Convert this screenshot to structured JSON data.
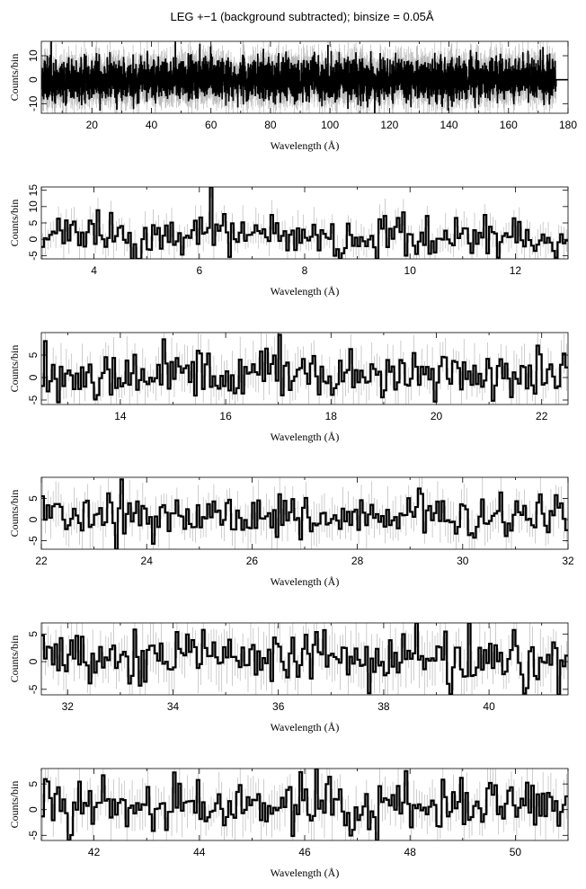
{
  "figure": {
    "title": "LEG +−1 (background subtracted); binsize = 0.05Å"
  },
  "chart_data": [
    {
      "type": "line",
      "xlabel": "Wavelength (Å)",
      "ylabel": "Counts/bin",
      "xlim": [
        3,
        180
      ],
      "ylim": [
        -14,
        16
      ],
      "xticks": [
        20,
        40,
        60,
        80,
        100,
        120,
        140,
        160,
        180
      ],
      "yticks": [
        -10,
        0,
        10
      ],
      "data_end": 176,
      "seed": 11,
      "amplitude": 4.2,
      "error_amplitude": 5.0,
      "peaks": [
        [
          6.3,
          16
        ],
        [
          115,
          -14
        ]
      ]
    },
    {
      "type": "line",
      "xlabel": "Wavelength (Å)",
      "ylabel": "Counts/bin",
      "xlim": [
        3,
        13
      ],
      "ylim": [
        -6,
        16
      ],
      "xticks": [
        4,
        6,
        8,
        10,
        12
      ],
      "yticks": [
        -5,
        0,
        5,
        10,
        15
      ],
      "seed": 23,
      "amplitude": 3.2,
      "error_amplitude": 4.0,
      "peaks": [
        [
          6.2,
          16
        ],
        [
          4.8,
          -6
        ],
        [
          9.9,
          -5
        ]
      ]
    },
    {
      "type": "line",
      "xlabel": "Wavelength (Å)",
      "ylabel": "Counts/bin",
      "xlim": [
        12.5,
        22.5
      ],
      "ylim": [
        -6,
        10
      ],
      "xticks": [
        14,
        16,
        18,
        20,
        22
      ],
      "yticks": [
        -5,
        0,
        5
      ],
      "seed": 37,
      "amplitude": 2.8,
      "error_amplitude": 4.0,
      "peaks": [
        [
          17,
          9.5
        ],
        [
          14.8,
          8.5
        ],
        [
          12.8,
          -5.5
        ]
      ]
    },
    {
      "type": "line",
      "xlabel": "Wavelength (Å)",
      "ylabel": "Counts/bin",
      "xlim": [
        22,
        32
      ],
      "ylim": [
        -7,
        10
      ],
      "xticks": [
        22,
        24,
        26,
        28,
        30,
        32
      ],
      "yticks": [
        -5,
        0,
        5
      ],
      "seed": 41,
      "amplitude": 2.6,
      "error_amplitude": 4.0,
      "peaks": [
        [
          23.5,
          9.5
        ],
        [
          23.4,
          -7
        ],
        [
          26.5,
          6
        ]
      ]
    },
    {
      "type": "line",
      "xlabel": "Wavelength (Å)",
      "ylabel": "Counts/bin",
      "xlim": [
        31.5,
        41.5
      ],
      "ylim": [
        -6,
        7
      ],
      "xticks": [
        32,
        34,
        36,
        38,
        40
      ],
      "yticks": [
        -5,
        0,
        5
      ],
      "seed": 53,
      "amplitude": 2.5,
      "error_amplitude": 3.8,
      "peaks": [
        [
          39.6,
          7
        ],
        [
          38.6,
          7
        ],
        [
          41.3,
          -6
        ]
      ]
    },
    {
      "type": "line",
      "xlabel": "Wavelength (Å)",
      "ylabel": "Counts/bin",
      "xlim": [
        41,
        51
      ],
      "ylim": [
        -6,
        8
      ],
      "xticks": [
        42,
        44,
        46,
        48,
        50
      ],
      "yticks": [
        -5,
        0,
        5
      ],
      "seed": 67,
      "amplitude": 2.5,
      "error_amplitude": 3.8,
      "peaks": [
        [
          46.2,
          8
        ],
        [
          47.9,
          7.5
        ],
        [
          41.5,
          -6
        ]
      ]
    }
  ]
}
